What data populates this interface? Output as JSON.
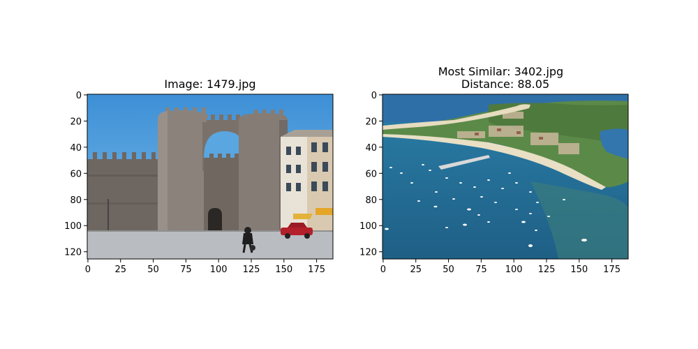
{
  "chart_data": [
    {
      "type": "image",
      "title": "Image: 1479.jpg",
      "image_label": "1479.jpg",
      "image_description": "Stone city gate with twin towers and an arch, crenellated walls, buildings on the right, a pedestrian and a red car in a plaza under a blue sky",
      "x_ticks": [
        0,
        25,
        50,
        75,
        100,
        125,
        150,
        175
      ],
      "y_ticks": [
        0,
        20,
        40,
        60,
        80,
        100,
        120
      ],
      "xlim": [
        -0.5,
        187.5
      ],
      "ylim": [
        125.5,
        -0.5
      ],
      "grid": false
    },
    {
      "type": "image",
      "title_lines": [
        "Most Similar: 3402.jpg",
        "Distance: 88.05"
      ],
      "image_label": "3402.jpg",
      "distance": 88.05,
      "image_description": "Aerial view of a coastal bay with many small boats on blue water, a sandy beach curving along the shore and a green town beyond",
      "x_ticks": [
        0,
        25,
        50,
        75,
        100,
        125,
        150,
        175
      ],
      "y_ticks": [
        0,
        20,
        40,
        60,
        80,
        100,
        120
      ],
      "xlim": [
        -0.5,
        187.5
      ],
      "ylim": [
        125.5,
        -0.5
      ],
      "grid": false
    }
  ]
}
